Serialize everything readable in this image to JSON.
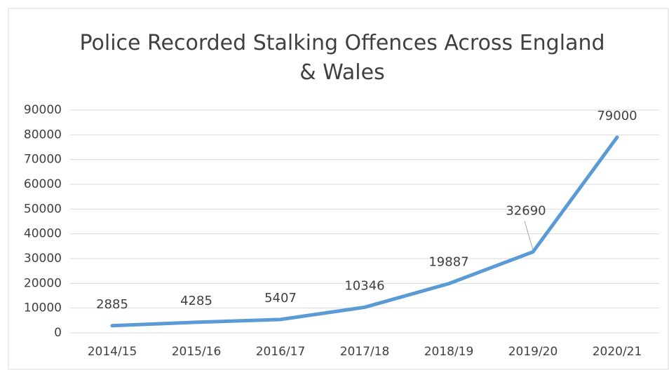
{
  "chart_data": {
    "type": "line",
    "title": "Police Recorded Stalking Offences Across England & Wales",
    "categories": [
      "2014/15",
      "2015/16",
      "2016/17",
      "2017/18",
      "2018/19",
      "2019/20",
      "2020/21"
    ],
    "values": [
      2885,
      4285,
      5407,
      10346,
      19887,
      32690,
      79000
    ],
    "color": "#5b9bd5",
    "ylim": [
      0,
      90000
    ],
    "yticks": [
      0,
      10000,
      20000,
      30000,
      40000,
      50000,
      60000,
      70000,
      80000,
      90000
    ],
    "grid": true
  }
}
